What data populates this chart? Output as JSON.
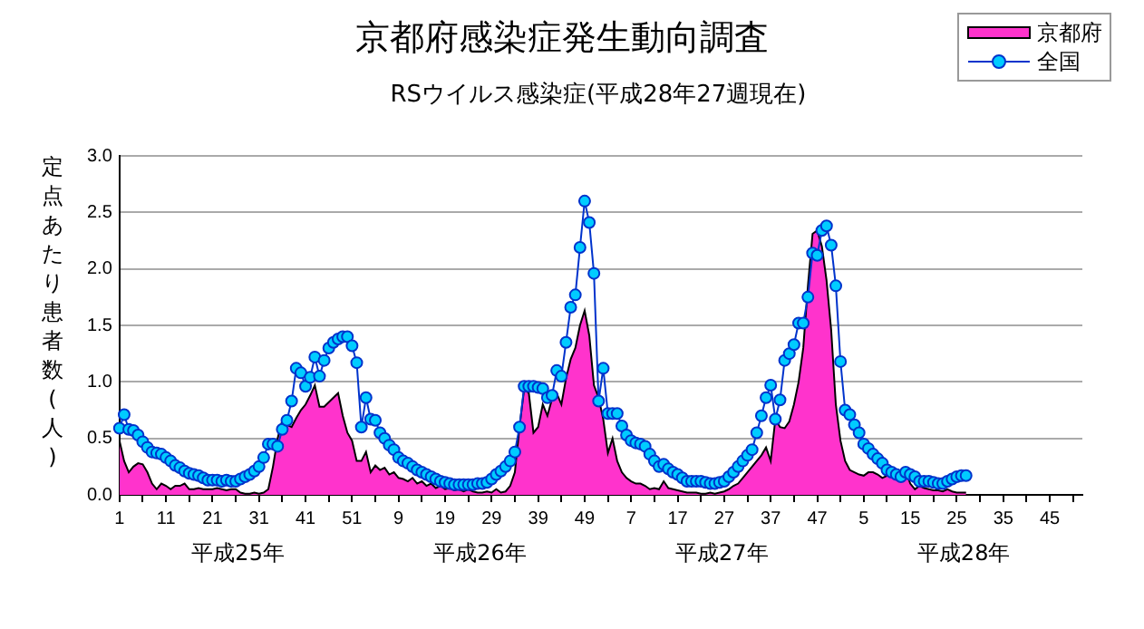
{
  "chart_data": {
    "type": "line",
    "title": "京都府感染症発生動向調査",
    "subtitle": "RSウイルス感染症(平成28年27週現在)",
    "ylabel": "定点あたり患者数(人)",
    "annotations": [
      "平成25年",
      "平成26年",
      "平成27年",
      "平成28年"
    ],
    "categories": [
      "1",
      null,
      null,
      null,
      null,
      null,
      null,
      null,
      null,
      null,
      "11",
      null,
      null,
      null,
      null,
      null,
      null,
      null,
      null,
      null,
      "21",
      null,
      null,
      null,
      null,
      null,
      null,
      null,
      null,
      null,
      "31",
      null,
      null,
      null,
      null,
      null,
      null,
      null,
      null,
      null,
      "41",
      null,
      null,
      null,
      null,
      null,
      null,
      null,
      null,
      null,
      "51",
      null,
      null,
      null,
      null,
      null,
      null,
      null,
      null,
      null,
      "9",
      null,
      null,
      null,
      null,
      null,
      null,
      null,
      null,
      null,
      "19",
      null,
      null,
      null,
      null,
      null,
      null,
      null,
      null,
      null,
      "29",
      null,
      null,
      null,
      null,
      null,
      null,
      null,
      null,
      null,
      "39",
      null,
      null,
      null,
      null,
      null,
      null,
      null,
      null,
      null,
      "49",
      null,
      null,
      null,
      null,
      null,
      null,
      null,
      null,
      null,
      "7",
      null,
      null,
      null,
      null,
      null,
      null,
      null,
      null,
      null,
      "17",
      null,
      null,
      null,
      null,
      null,
      null,
      null,
      null,
      null,
      "27",
      null,
      null,
      null,
      null,
      null,
      null,
      null,
      null,
      null,
      "37",
      null,
      null,
      null,
      null,
      null,
      null,
      null,
      null,
      null,
      "47",
      null,
      null,
      null,
      null,
      null,
      null,
      null,
      null,
      null,
      "5",
      null,
      null,
      null,
      null,
      null,
      null,
      null,
      null,
      null,
      "15",
      null,
      null,
      null,
      null,
      null,
      null,
      null,
      null,
      null,
      "25",
      null,
      null,
      null,
      null,
      null,
      null,
      null,
      null,
      null,
      "35",
      null,
      null,
      null,
      null,
      null,
      null,
      null,
      null,
      null,
      "45",
      null,
      null,
      null,
      null,
      null,
      null,
      null
    ],
    "series": [
      {
        "name": "京都府",
        "type": "area",
        "color": "#ff33cc",
        "marker": "none",
        "values": [
          0.48,
          0.3,
          0.2,
          0.25,
          0.28,
          0.27,
          0.2,
          0.1,
          0.05,
          0.1,
          0.08,
          0.05,
          0.08,
          0.08,
          0.1,
          0.05,
          0.05,
          0.06,
          0.05,
          0.05,
          0.05,
          0.06,
          0.05,
          0.04,
          0.05,
          0.05,
          0.02,
          0.01,
          0.01,
          0.02,
          0.01,
          0.02,
          0.05,
          0.25,
          0.5,
          0.66,
          0.62,
          0.6,
          0.68,
          0.75,
          0.8,
          0.88,
          0.97,
          0.78,
          0.78,
          0.82,
          0.86,
          0.9,
          0.7,
          0.55,
          0.48,
          0.3,
          0.3,
          0.38,
          0.2,
          0.26,
          0.22,
          0.24,
          0.18,
          0.2,
          0.15,
          0.14,
          0.12,
          0.15,
          0.1,
          0.12,
          0.08,
          0.1,
          0.06,
          0.08,
          0.05,
          0.06,
          0.04,
          0.05,
          0.03,
          0.05,
          0.03,
          0.02,
          0.02,
          0.03,
          0.02,
          0.05,
          0.02,
          0.03,
          0.08,
          0.2,
          0.6,
          0.94,
          0.9,
          0.55,
          0.6,
          0.8,
          0.7,
          0.85,
          0.9,
          0.8,
          1.03,
          1.2,
          1.3,
          1.5,
          1.63,
          1.41,
          0.97,
          0.86,
          0.67,
          0.37,
          0.5,
          0.3,
          0.2,
          0.15,
          0.12,
          0.1,
          0.1,
          0.08,
          0.05,
          0.06,
          0.05,
          0.12,
          0.06,
          0.05,
          0.04,
          0.03,
          0.02,
          0.02,
          0.02,
          0.01,
          0.01,
          0.02,
          0.01,
          0.02,
          0.03,
          0.05,
          0.08,
          0.1,
          0.15,
          0.2,
          0.25,
          0.3,
          0.35,
          0.42,
          0.3,
          0.67,
          0.6,
          0.59,
          0.65,
          0.8,
          1.0,
          1.3,
          1.85,
          2.31,
          2.34,
          2.2,
          1.9,
          1.46,
          0.8,
          0.48,
          0.3,
          0.22,
          0.2,
          0.18,
          0.17,
          0.2,
          0.2,
          0.18,
          0.15,
          0.17,
          0.2,
          0.18,
          0.2,
          0.22,
          0.1,
          0.05,
          0.08,
          0.06,
          0.05,
          0.04,
          0.04,
          0.03,
          0.05,
          0.03,
          0.02,
          0.02,
          0.02,
          null,
          null,
          null,
          null,
          null,
          null,
          null,
          null,
          null,
          null,
          null,
          null,
          null,
          null,
          null,
          null,
          null,
          null,
          null,
          null,
          null,
          null,
          null,
          null,
          null
        ]
      },
      {
        "name": "全国",
        "type": "line",
        "color": "#0033cc",
        "marker": "circle",
        "values": [
          0.59,
          0.71,
          0.58,
          0.57,
          0.53,
          0.47,
          0.42,
          0.38,
          0.37,
          0.36,
          0.33,
          0.3,
          0.26,
          0.24,
          0.21,
          0.19,
          0.18,
          0.17,
          0.15,
          0.13,
          0.13,
          0.13,
          0.12,
          0.13,
          0.12,
          0.12,
          0.14,
          0.16,
          0.18,
          0.21,
          0.25,
          0.33,
          0.45,
          0.45,
          0.43,
          0.58,
          0.66,
          0.83,
          1.12,
          1.08,
          0.96,
          1.04,
          1.22,
          1.05,
          1.19,
          1.3,
          1.35,
          1.38,
          1.4,
          1.4,
          1.32,
          1.17,
          0.6,
          0.86,
          0.67,
          0.66,
          0.55,
          0.5,
          0.44,
          0.4,
          0.33,
          0.3,
          0.28,
          0.25,
          0.22,
          0.2,
          0.18,
          0.16,
          0.14,
          0.12,
          0.11,
          0.1,
          0.09,
          0.09,
          0.09,
          0.09,
          0.09,
          0.1,
          0.1,
          0.11,
          0.14,
          0.18,
          0.21,
          0.25,
          0.3,
          0.38,
          0.6,
          0.96,
          0.96,
          0.96,
          0.95,
          0.94,
          0.86,
          0.88,
          1.1,
          1.05,
          1.35,
          1.66,
          1.77,
          2.19,
          2.6,
          2.41,
          1.96,
          0.83,
          1.12,
          0.72,
          0.72,
          0.72,
          0.61,
          0.53,
          0.48,
          0.46,
          0.45,
          0.43,
          0.36,
          0.3,
          0.25,
          0.27,
          0.23,
          0.2,
          0.18,
          0.15,
          0.12,
          0.12,
          0.12,
          0.12,
          0.11,
          0.1,
          0.1,
          0.11,
          0.12,
          0.16,
          0.2,
          0.25,
          0.3,
          0.35,
          0.4,
          0.55,
          0.7,
          0.86,
          0.97,
          0.67,
          0.84,
          1.19,
          1.25,
          1.33,
          1.52,
          1.52,
          1.75,
          2.14,
          2.12,
          2.34,
          2.38,
          2.21,
          1.85,
          1.18,
          0.75,
          0.71,
          0.62,
          0.55,
          0.45,
          0.41,
          0.36,
          0.32,
          0.28,
          0.22,
          0.2,
          0.18,
          0.16,
          0.2,
          0.18,
          0.16,
          0.12,
          0.12,
          0.12,
          0.11,
          0.1,
          0.1,
          0.12,
          0.14,
          0.16,
          0.17,
          0.17,
          null,
          null,
          null,
          null,
          null,
          null,
          null,
          null,
          null,
          null,
          null,
          null,
          null,
          null,
          null,
          null,
          null,
          null,
          null,
          null,
          null,
          null,
          null,
          null,
          null
        ]
      }
    ],
    "ylim": [
      0,
      3
    ],
    "yticks": [
      {
        "value": 0,
        "label": "0.0"
      },
      {
        "value": 0.5,
        "label": "0.5"
      },
      {
        "value": 1,
        "label": "1.0"
      },
      {
        "value": 1.5,
        "label": "1.5"
      },
      {
        "value": 2,
        "label": "2.0"
      },
      {
        "value": 2.5,
        "label": "2.5"
      },
      {
        "value": 3,
        "label": "3.0"
      }
    ],
    "grid": "y",
    "legend": "top right"
  }
}
